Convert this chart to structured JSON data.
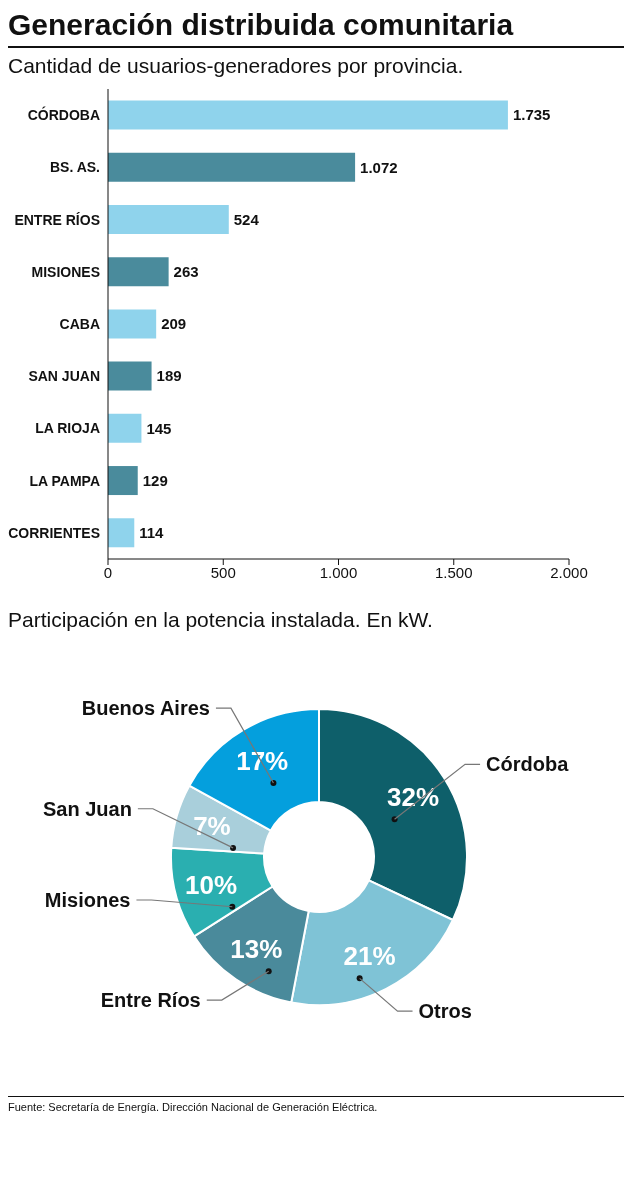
{
  "chart_data": [
    {
      "type": "bar",
      "orientation": "horizontal",
      "title": "Generación distribuida comunitaria",
      "subtitle": "Cantidad de usuarios-generadores por provincia.",
      "categories": [
        "CÓRDOBA",
        "BS. AS.",
        "ENTRE RÍOS",
        "MISIONES",
        "CABA",
        "SAN JUAN",
        "LA RIOJA",
        "LA PAMPA",
        "CORRIENTES"
      ],
      "values": [
        1735,
        1072,
        524,
        263,
        209,
        189,
        145,
        129,
        114
      ],
      "colors": [
        "#8fd3ec",
        "#4a8b9c",
        "#8fd3ec",
        "#4a8b9c",
        "#8fd3ec",
        "#4a8b9c",
        "#8fd3ec",
        "#4a8b9c",
        "#8fd3ec"
      ],
      "value_labels": [
        "1.735",
        "1.072",
        "524",
        "263",
        "209",
        "189",
        "145",
        "129",
        "114"
      ],
      "xlim": [
        0,
        2000
      ],
      "xticks": [
        0,
        500,
        {
          "value": 1000,
          "label": "1.000"
        },
        {
          "value": 1500,
          "label": "1.500"
        },
        {
          "value": 2000,
          "label": "2.000"
        }
      ],
      "grid": false,
      "legend": false
    },
    {
      "type": "donut",
      "title": "Participación en la potencia instalada. En kW.",
      "categories": [
        "Córdoba",
        "Otros",
        "Entre Ríos",
        "Misiones",
        "San Juan",
        "Buenos Aires"
      ],
      "values": [
        32,
        21,
        13,
        10,
        7,
        17
      ],
      "colors": [
        "#0e5f6a",
        "#7fc3d6",
        "#4a8a9b",
        "#2aafb0",
        "#a9cfdb",
        "#049fdd"
      ],
      "value_labels": [
        "32%",
        "21%",
        "13%",
        "10%",
        "7%",
        "17%"
      ],
      "legend": false,
      "annotations": [
        "Fuente: Secretaría de Energía. Dirección Nacional de Generación Eléctrica."
      ]
    }
  ]
}
